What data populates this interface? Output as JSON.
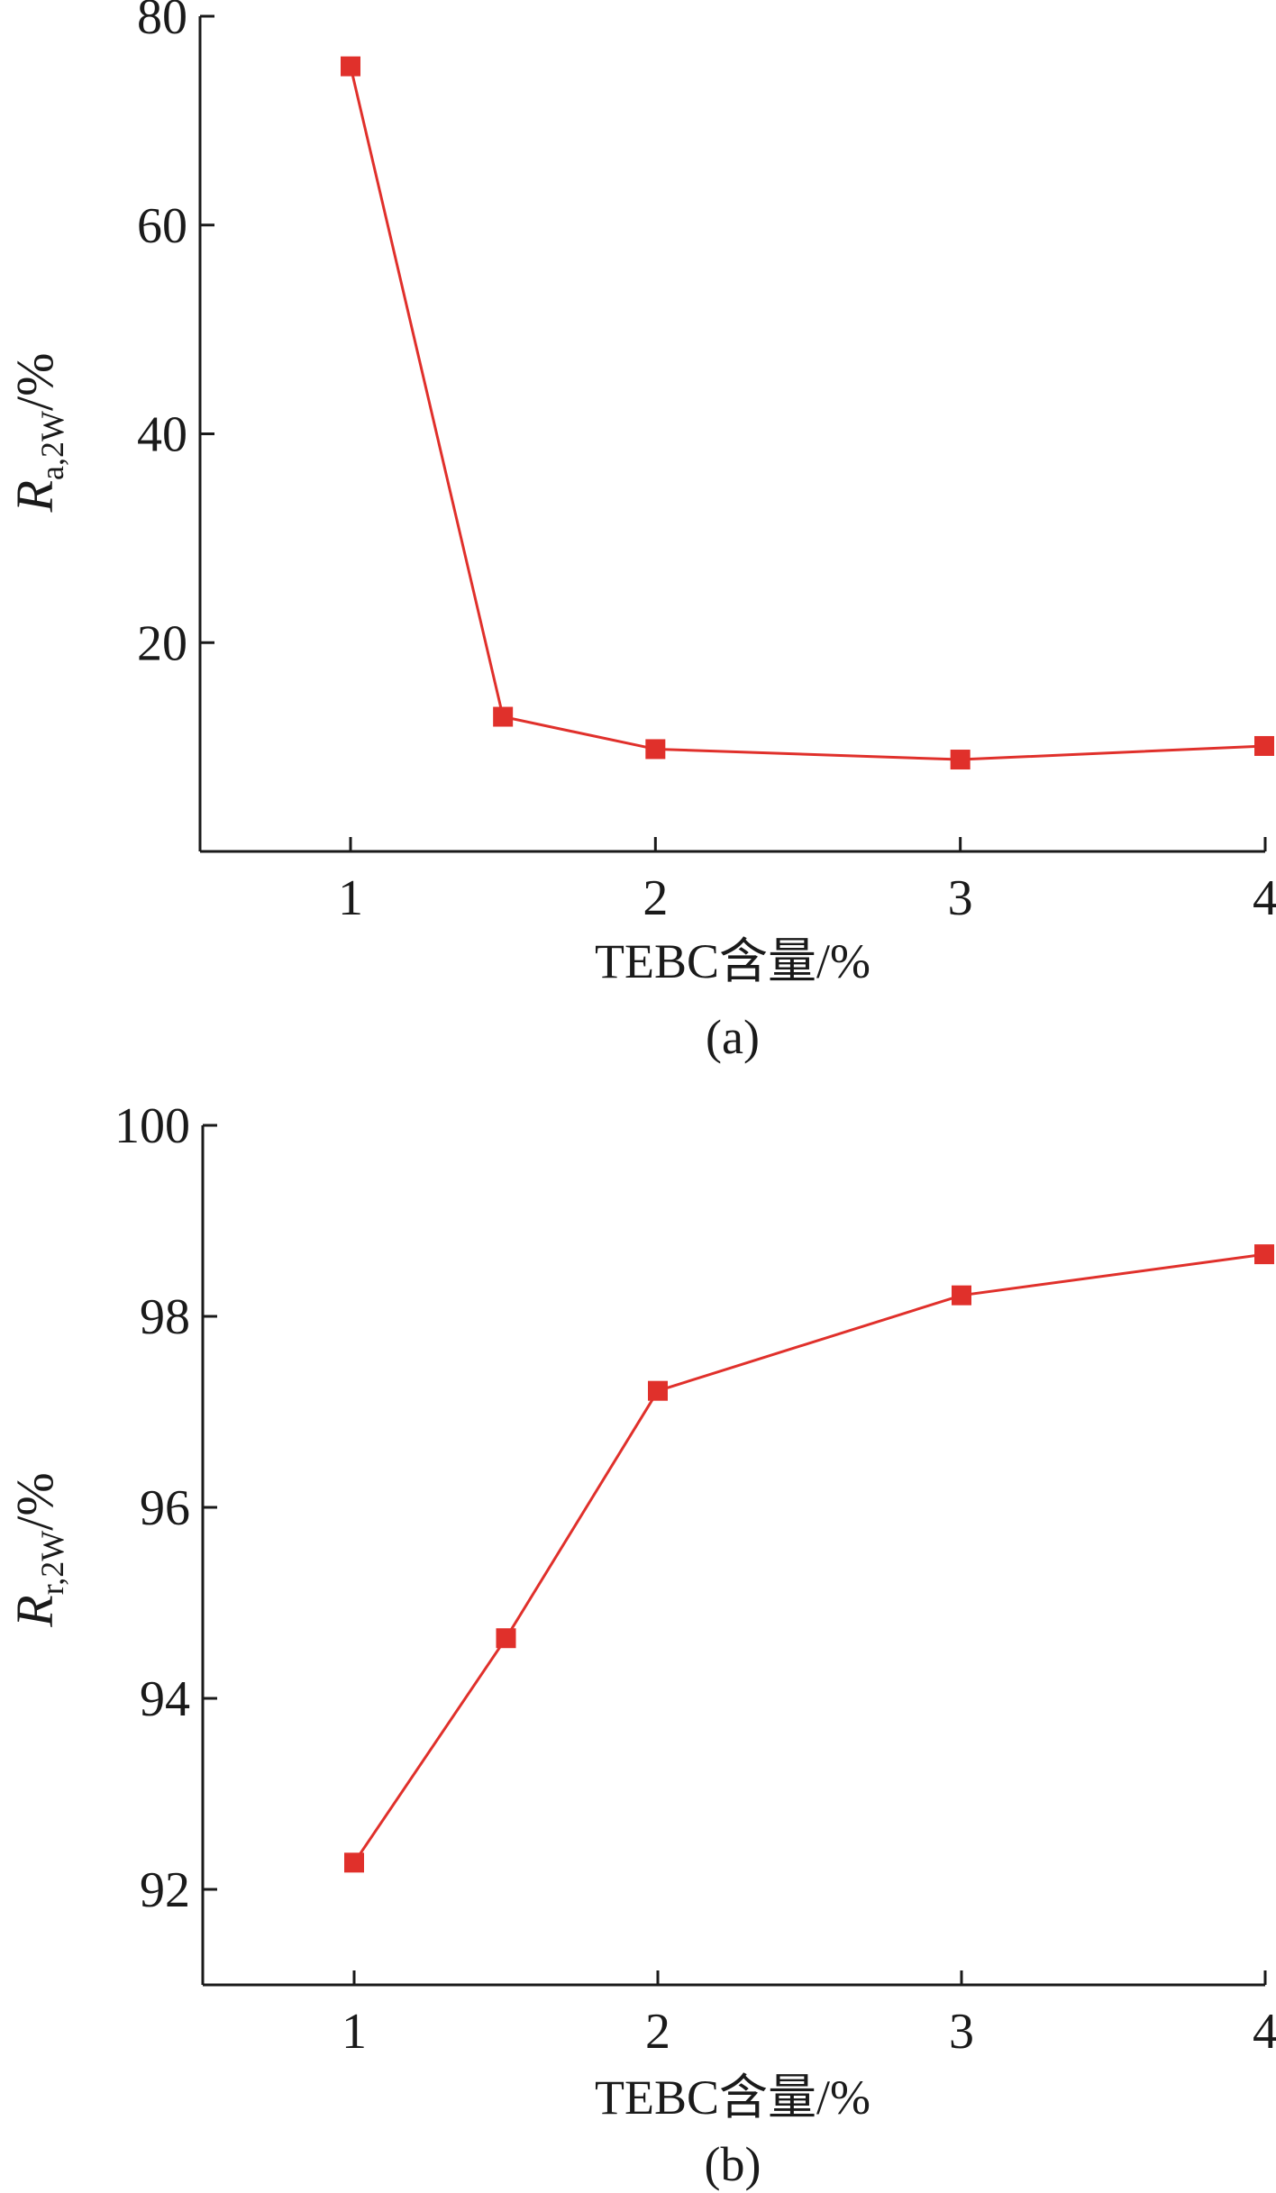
{
  "chart_data": [
    {
      "type": "line",
      "panel_label": "(a)",
      "xlabel": "TEBC含量/%",
      "ylabel": {
        "main": "R",
        "sub": "a,2W",
        "unit": "/%"
      },
      "x": [
        1,
        1.5,
        2,
        3,
        4
      ],
      "series": [
        {
          "values": [
            75.2,
            12.9,
            9.8,
            8.8,
            10.1
          ]
        }
      ],
      "xlim": [
        0.5,
        4
      ],
      "ylim": [
        0,
        80
      ],
      "xticks": [
        1,
        2,
        3,
        4
      ],
      "yticks": [
        20,
        40,
        60,
        80
      ],
      "grid": false,
      "color": "#e0302b"
    },
    {
      "type": "line",
      "panel_label": "(b)",
      "xlabel": "TEBC含量/%",
      "ylabel": {
        "main": "R",
        "sub": "r,2W",
        "unit": "/%"
      },
      "x": [
        1,
        1.5,
        2,
        3,
        4
      ],
      "series": [
        {
          "values": [
            92.28,
            94.63,
            97.22,
            98.22,
            98.65
          ]
        }
      ],
      "xlim": [
        0.5,
        4
      ],
      "ylim": [
        91,
        100
      ],
      "xticks": [
        1,
        2,
        3,
        4
      ],
      "yticks": [
        92,
        94,
        96,
        98,
        100
      ],
      "grid": false,
      "color": "#e0302b"
    }
  ]
}
